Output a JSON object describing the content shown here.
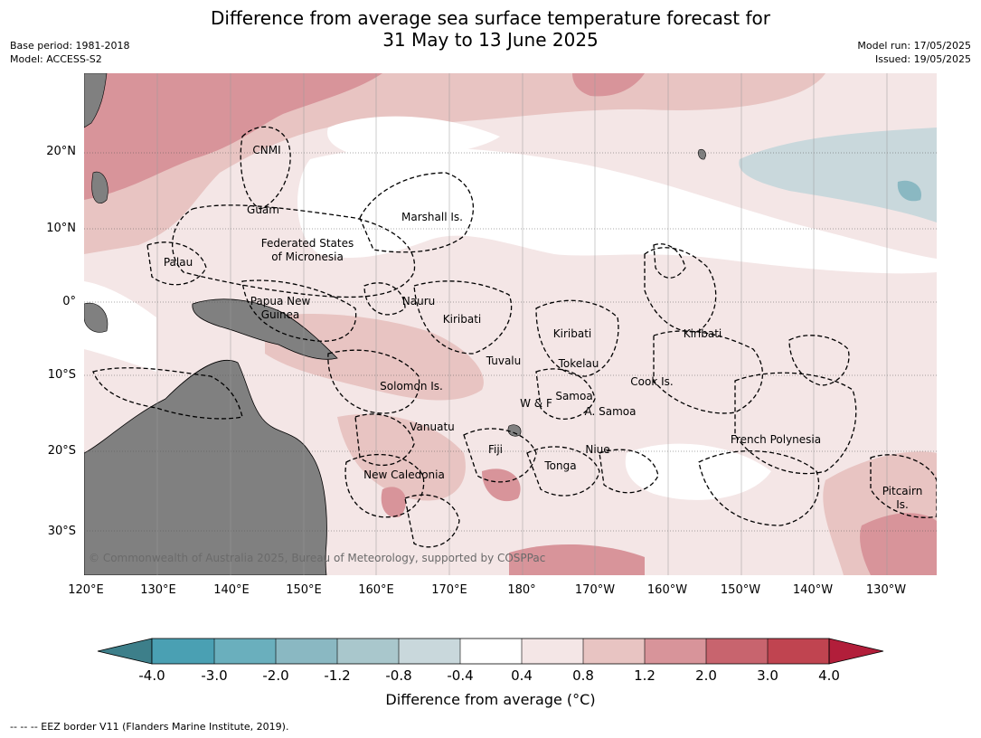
{
  "title": {
    "line1": "Difference from average sea surface temperature forecast for",
    "line2": "31 May to 13 June 2025"
  },
  "meta": {
    "base_period": "Base period: 1981-2018",
    "model": "Model: ACCESS-S2",
    "model_run": "Model run: 17/05/2025",
    "issued": "Issued: 19/05/2025"
  },
  "map": {
    "lon_labels": [
      "120°E",
      "130°E",
      "140°E",
      "150°E",
      "160°E",
      "170°E",
      "180°",
      "170°W",
      "160°W",
      "150°W",
      "140°W",
      "130°W"
    ],
    "lat_labels": [
      "20°N",
      "10°N",
      "0°",
      "10°S",
      "20°S",
      "30°S"
    ],
    "regions": [
      "CNMI",
      "Guam",
      "Marshall Is.",
      "Federated States",
      "of Micronesia",
      "Palau",
      "Papua New",
      "Guinea",
      "Nauru",
      "Kiribati",
      "Kiribati",
      "Kiribati",
      "Tuvalu",
      "Tokelau",
      "Solomon Is.",
      "Samoa",
      "W & F",
      "A. Samoa",
      "Cook Is.",
      "Vanuatu",
      "Fiji",
      "Niue",
      "Tonga",
      "French Polynesia",
      "New Caledonia",
      "Pitcairn",
      "Is."
    ],
    "copyright": "© Commonwealth of Australia 2025, Bureau of Meteorology, supported by COSPPac",
    "colors": {
      "land": "#808080",
      "ocean_base": "#f4e6e6"
    }
  },
  "colorbar": {
    "labels": [
      "-4.0",
      "-3.0",
      "-2.0",
      "-1.2",
      "-0.8",
      "-0.4",
      "0.4",
      "0.8",
      "1.2",
      "2.0",
      "3.0",
      "4.0"
    ],
    "colors": [
      "#3d7f8a",
      "#4aa0b3",
      "#6aafbd",
      "#8ab8c2",
      "#a9c7cc",
      "#c9d8dc",
      "#ffffff",
      "#f4e6e6",
      "#e8c4c2",
      "#d8949a",
      "#c8646e",
      "#c04450",
      "#b21e3a"
    ],
    "title": "Difference from average (°C)"
  },
  "footer": "--  --  -- EEZ border V11 (Flanders Marine Institute, 2019)."
}
